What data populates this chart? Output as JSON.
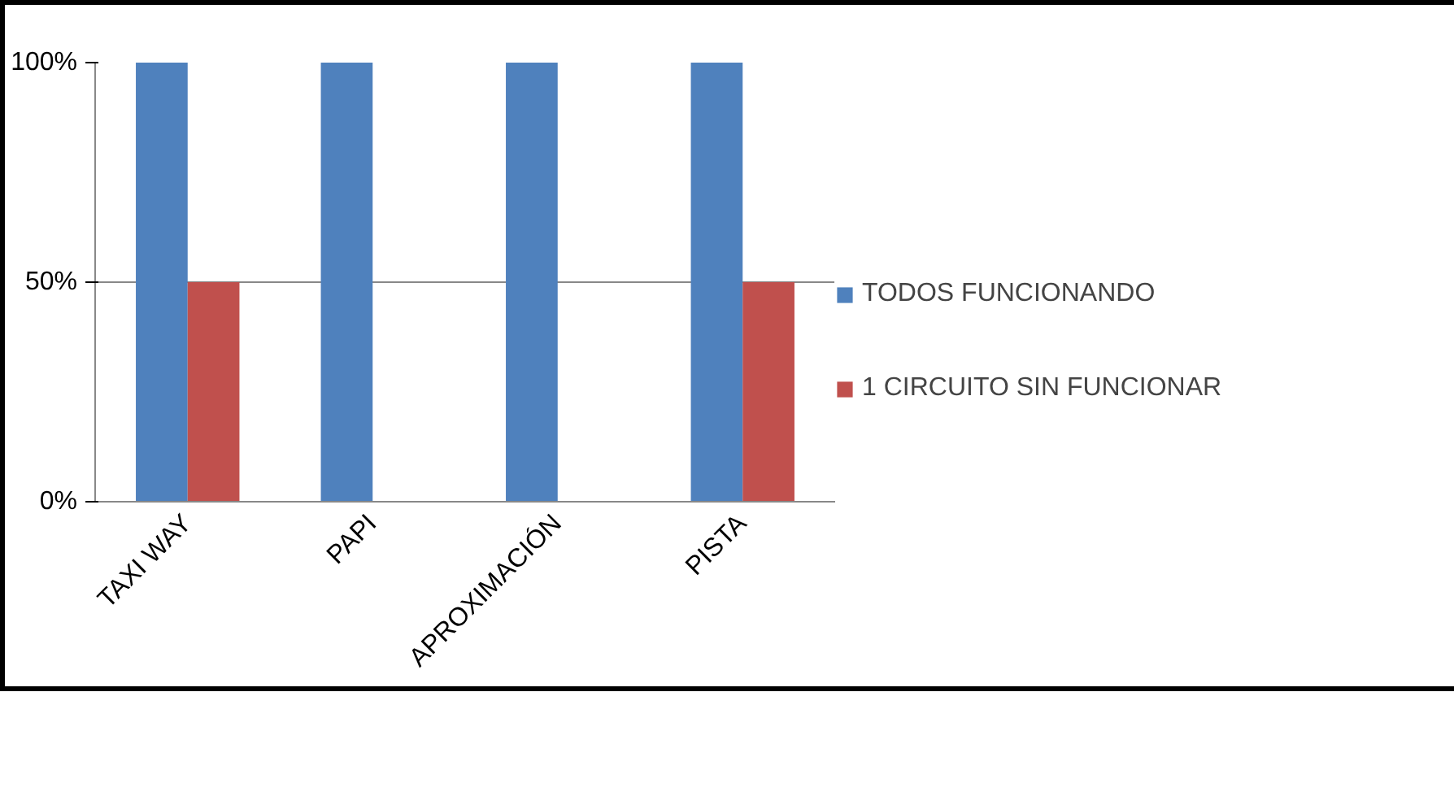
{
  "chart_data": {
    "type": "bar",
    "categories": [
      "TAXI WAY",
      "PAPI",
      "APROXIMACIÓN",
      "PISTA"
    ],
    "series": [
      {
        "name": "TODOS FUNCIONANDO",
        "color": "#4f81bd",
        "values": [
          100,
          100,
          100,
          100
        ]
      },
      {
        "name": "1 CIRCUITO SIN FUNCIONAR",
        "color": "#c0504d",
        "values": [
          50,
          0,
          0,
          50
        ]
      }
    ],
    "ylim": [
      0,
      100
    ],
    "yticks": [
      {
        "value": 0,
        "label": "0%"
      },
      {
        "value": 50,
        "label": "50%"
      },
      {
        "value": 100,
        "label": "100%"
      }
    ],
    "grid": "y",
    "legend": "right"
  }
}
